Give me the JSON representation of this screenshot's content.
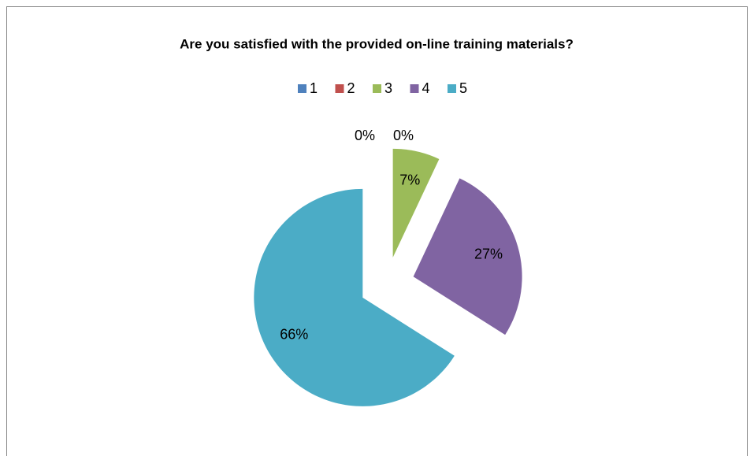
{
  "chart_data": {
    "type": "pie",
    "title": "Are you satisfied with the provided on-line training materials?",
    "categories": [
      "1",
      "2",
      "3",
      "4",
      "5"
    ],
    "values": [
      0,
      0,
      7,
      27,
      66
    ],
    "value_labels": [
      "0%",
      "0%",
      "7%",
      "27%",
      "66%"
    ],
    "colors": [
      "#4f81bd",
      "#c0504d",
      "#9bbb59",
      "#8064a2",
      "#4bacc6"
    ],
    "legend": "top"
  }
}
